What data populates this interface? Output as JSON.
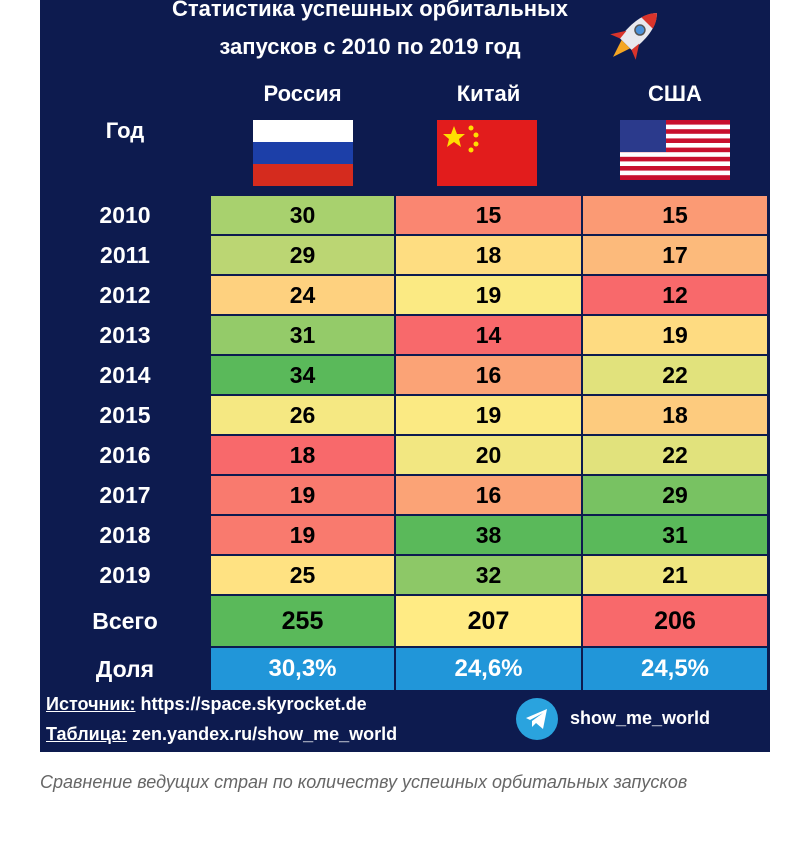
{
  "header": {
    "title_line1": "Статистика успешных орбитальных",
    "title_line2": "запусков с 2010 по 2019 год"
  },
  "table": {
    "year_header": "Год",
    "countries": [
      "Россия",
      "Китай",
      "США"
    ],
    "rows": [
      {
        "year": "2010",
        "values": [
          30,
          15,
          15
        ]
      },
      {
        "year": "2011",
        "values": [
          29,
          18,
          17
        ]
      },
      {
        "year": "2012",
        "values": [
          24,
          19,
          12
        ]
      },
      {
        "year": "2013",
        "values": [
          31,
          14,
          19
        ]
      },
      {
        "year": "2014",
        "values": [
          34,
          16,
          22
        ]
      },
      {
        "year": "2015",
        "values": [
          26,
          19,
          18
        ]
      },
      {
        "year": "2016",
        "values": [
          18,
          20,
          22
        ]
      },
      {
        "year": "2017",
        "values": [
          19,
          16,
          29
        ]
      },
      {
        "year": "2018",
        "values": [
          19,
          38,
          31
        ]
      },
      {
        "year": "2019",
        "values": [
          25,
          32,
          21
        ]
      }
    ],
    "total": {
      "label": "Всего",
      "values": [
        255,
        207,
        206
      ]
    },
    "share": {
      "label": "Доля",
      "values": [
        "30,3%",
        "24,6%",
        "24,5%"
      ]
    }
  },
  "footer": {
    "source_label": "Источник:",
    "source": "https://space.skyrocket.de",
    "table_label": "Таблица:",
    "table": "zen.yandex.ru/show_me_world",
    "channel": "show_me_world"
  },
  "caption": "Сравнение ведущих стран по количеству успешных орбитальных запусков"
}
